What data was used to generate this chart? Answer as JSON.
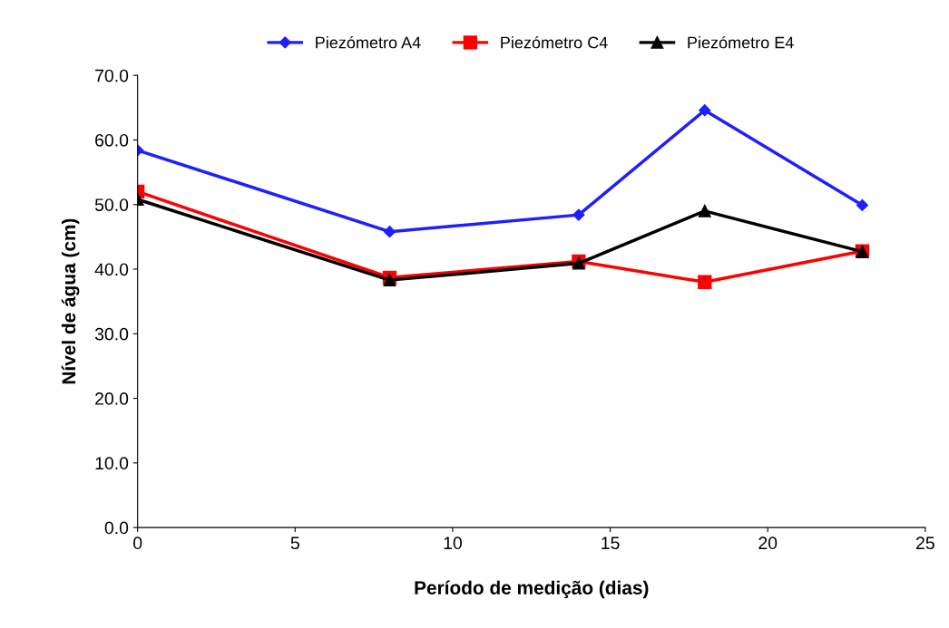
{
  "chart_data": {
    "type": "line",
    "xlabel": "Período de medição (dias)",
    "ylabel": "Nível de água (cm)",
    "x": [
      0,
      8,
      14,
      18,
      23
    ],
    "series": [
      {
        "name": "Piezómetro A4",
        "color": "#1f1fff",
        "marker": "diamond",
        "values": [
          58.4,
          45.8,
          48.4,
          64.6,
          49.9
        ]
      },
      {
        "name": "Piezómetro C4",
        "color": "#ff0000",
        "marker": "square",
        "values": [
          52.0,
          38.7,
          41.2,
          38.0,
          42.8
        ]
      },
      {
        "name": "Piezómetro E4",
        "color": "#000000",
        "marker": "triangle",
        "values": [
          50.8,
          38.3,
          40.9,
          49.0,
          42.7
        ]
      }
    ],
    "xlim": [
      0,
      25
    ],
    "xticks": [
      0,
      5,
      10,
      15,
      20,
      25
    ],
    "ylim": [
      0,
      70
    ],
    "yticks": [
      {
        "value": 0,
        "label": "0.0"
      },
      {
        "value": 10,
        "label": "10.0"
      },
      {
        "value": 20,
        "label": "20.0"
      },
      {
        "value": 30,
        "label": "30.0"
      },
      {
        "value": 40,
        "label": "40.0"
      },
      {
        "value": 50,
        "label": "50.0"
      },
      {
        "value": 60,
        "label": "60.0"
      },
      {
        "value": 70,
        "label": "70.0"
      }
    ],
    "grid": false,
    "legend": "top",
    "line_style": "solid"
  }
}
